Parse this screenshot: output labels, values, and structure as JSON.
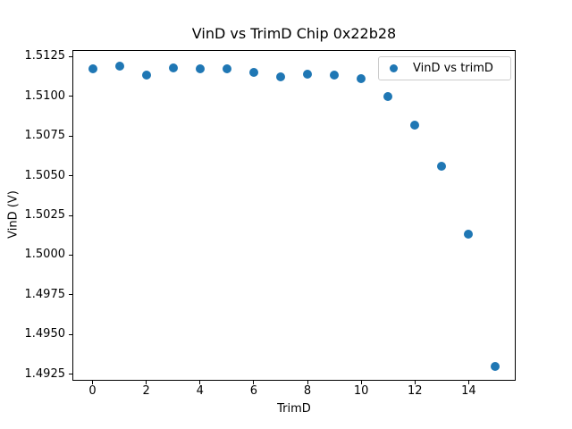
{
  "figure": {
    "background": "#ffffff",
    "text_color": "#000000",
    "spine_color": "#000000",
    "legend_border_color": "#cccccc"
  },
  "chart_data": {
    "type": "scatter",
    "title": "VinD vs TrimD Chip 0x22b28",
    "xlabel": "TrimD",
    "ylabel": "VinD (V)",
    "grid": false,
    "marker": "circle",
    "legend": {
      "position": "upper right",
      "entries": [
        {
          "label": "VinD vs trimD",
          "marker_color": "#1f77b4"
        }
      ]
    },
    "x": [
      0,
      1,
      2,
      3,
      4,
      5,
      6,
      7,
      8,
      9,
      10,
      11,
      12,
      13,
      14,
      15
    ],
    "series": [
      {
        "name": "VinD vs trimD",
        "color": "#1f77b4",
        "values": [
          1.5117,
          1.5119,
          1.5113,
          1.5118,
          1.5117,
          1.5117,
          1.5115,
          1.5112,
          1.5114,
          1.5113,
          1.5111,
          1.51,
          1.5082,
          1.5056,
          1.5013,
          1.493
        ]
      }
    ],
    "xlim": [
      -0.75,
      15.75
    ],
    "ylim": [
      1.4921,
      1.5129
    ],
    "xticks": [
      0,
      2,
      4,
      6,
      8,
      10,
      12,
      14
    ],
    "xtick_labels": [
      "0",
      "2",
      "4",
      "6",
      "8",
      "10",
      "12",
      "14"
    ],
    "yticks": [
      1.4925,
      1.495,
      1.4975,
      1.5,
      1.5025,
      1.505,
      1.5075,
      1.51,
      1.5125
    ],
    "ytick_labels": [
      "1.4925",
      "1.4950",
      "1.4975",
      "1.5000",
      "1.5025",
      "1.5050",
      "1.5075",
      "1.5100",
      "1.5125"
    ]
  }
}
